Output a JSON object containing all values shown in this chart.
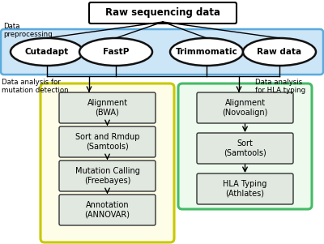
{
  "title": "Raw sequencing data",
  "preprocessing_label": "Data\npreprocessing",
  "preprocessing_tools": [
    "Cutadapt",
    "FastP",
    "Trimmomatic",
    "Raw data"
  ],
  "left_group_label": "Data analysis for\nmutation detection",
  "right_group_label": "Data analysis\nfor HLA typing",
  "left_steps": [
    "Alignment\n(BWA)",
    "Sort and Rmdup\n(Samtools)",
    "Mutation Calling\n(Freebayes)",
    "Annotation\n(ANNOVAR)"
  ],
  "right_steps": [
    "Alignment\n(Novoalign)",
    "Sort\n(Samtools)",
    "HLA Typing\n(Athlates)"
  ],
  "bg_color": "#ffffff",
  "title_box_color": "#ffffff",
  "title_box_edge": "#000000",
  "preprocessing_bg": "#cce5f7",
  "preprocessing_edge": "#5aaadc",
  "ellipse_bg": "#ffffff",
  "ellipse_edge": "#111111",
  "left_group_bg": "#fefee8",
  "left_group_edge": "#c8c800",
  "right_group_bg": "#edfaed",
  "right_group_edge": "#44bb66",
  "step_box_bg": "#e0e8e0",
  "step_box_edge": "#333333",
  "font_size_title": 8.5,
  "font_size_tools": 7.5,
  "font_size_steps": 7,
  "font_size_labels": 6.2
}
